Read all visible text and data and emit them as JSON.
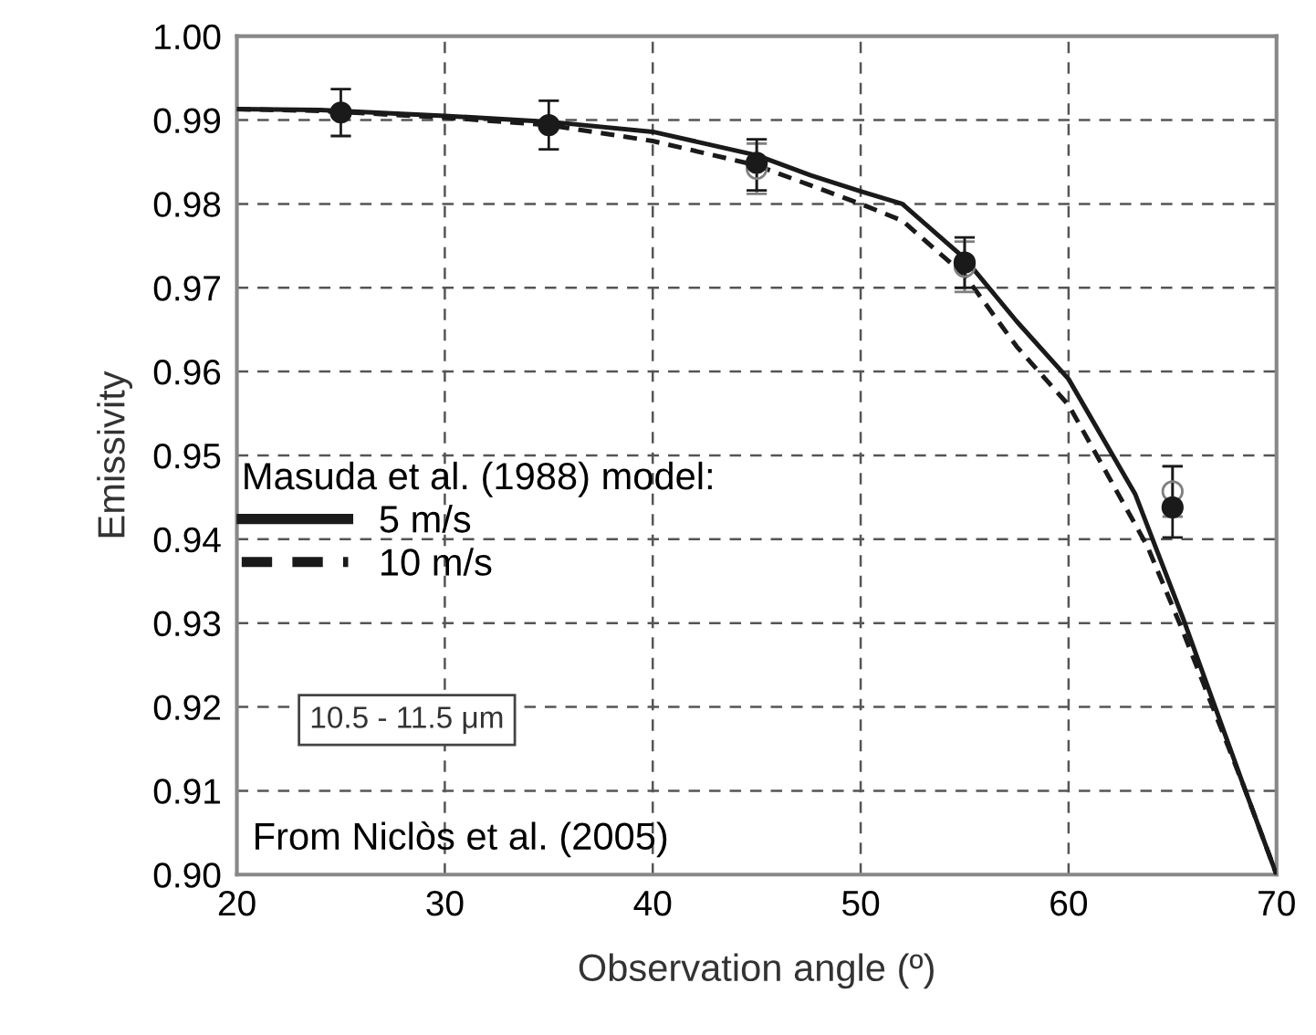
{
  "chart_data": {
    "type": "line",
    "xlabel": "Observation angle (º)",
    "ylabel": "Emissivity",
    "legend_title": "Masuda et al. (1988) model:",
    "legend": "left",
    "grid": true,
    "xlim": [
      20,
      70
    ],
    "ylim": [
      0.9,
      1.0
    ],
    "xticks": [
      20,
      30,
      40,
      50,
      60,
      70
    ],
    "yticks": [
      {
        "value": 0.9,
        "label": "0.90"
      },
      0.91,
      0.92,
      0.93,
      0.94,
      0.95,
      0.96,
      0.97,
      0.98,
      0.99,
      {
        "value": 1.0,
        "label": "1.00"
      }
    ],
    "series": [
      {
        "name": "5 m/s",
        "color": "#1a1a1a",
        "line_style": "solid",
        "marker": "none",
        "x": [
          20,
          24,
          30,
          35,
          40,
          45,
          47.6,
          50,
          52,
          55,
          57.5,
          60,
          63.2,
          65.5,
          68.4,
          70
        ],
        "values": [
          0.9913,
          0.9912,
          0.9905,
          0.9898,
          0.9886,
          0.9858,
          0.9834,
          0.9815,
          0.98,
          0.9735,
          0.966,
          0.9591,
          0.9454,
          0.9306,
          0.9107,
          0.9
        ]
      },
      {
        "name": "10 m/s",
        "color": "#1a1a1a",
        "line_style": "dashed",
        "marker": "none",
        "x": [
          20,
          24,
          30,
          35,
          40,
          45,
          47.6,
          50,
          52,
          55,
          57.5,
          60,
          61.2,
          63.8,
          65.5,
          68.4,
          70
        ],
        "values": [
          0.9913,
          0.9911,
          0.9903,
          0.9894,
          0.9875,
          0.9846,
          0.9822,
          0.98,
          0.978,
          0.9715,
          0.963,
          0.956,
          0.9507,
          0.9391,
          0.929,
          0.9107,
          0.9
        ]
      },
      {
        "type": "scatter",
        "color": "#808080",
        "marker": "circle",
        "x": [
          45,
          55,
          65
        ],
        "values": [
          0.9842,
          0.9725,
          0.9457
        ],
        "errors": [
          0.003,
          0.003,
          0.003
        ]
      },
      {
        "type": "scatter",
        "color": "#1a1a1a",
        "marker": "circle",
        "x": [
          25,
          35,
          45,
          55,
          65
        ],
        "values": [
          0.9909,
          0.9894,
          0.9849,
          0.973,
          0.9438
        ],
        "errors": [
          0.0028,
          0.0029,
          [
            0.9816,
            0.9877
          ],
          0.003,
          [
            0.9402,
            0.9487
          ]
        ]
      }
    ],
    "annotations": [
      "10.5 - 11.5 μm",
      "From Niclòs et al. (2005)"
    ]
  }
}
